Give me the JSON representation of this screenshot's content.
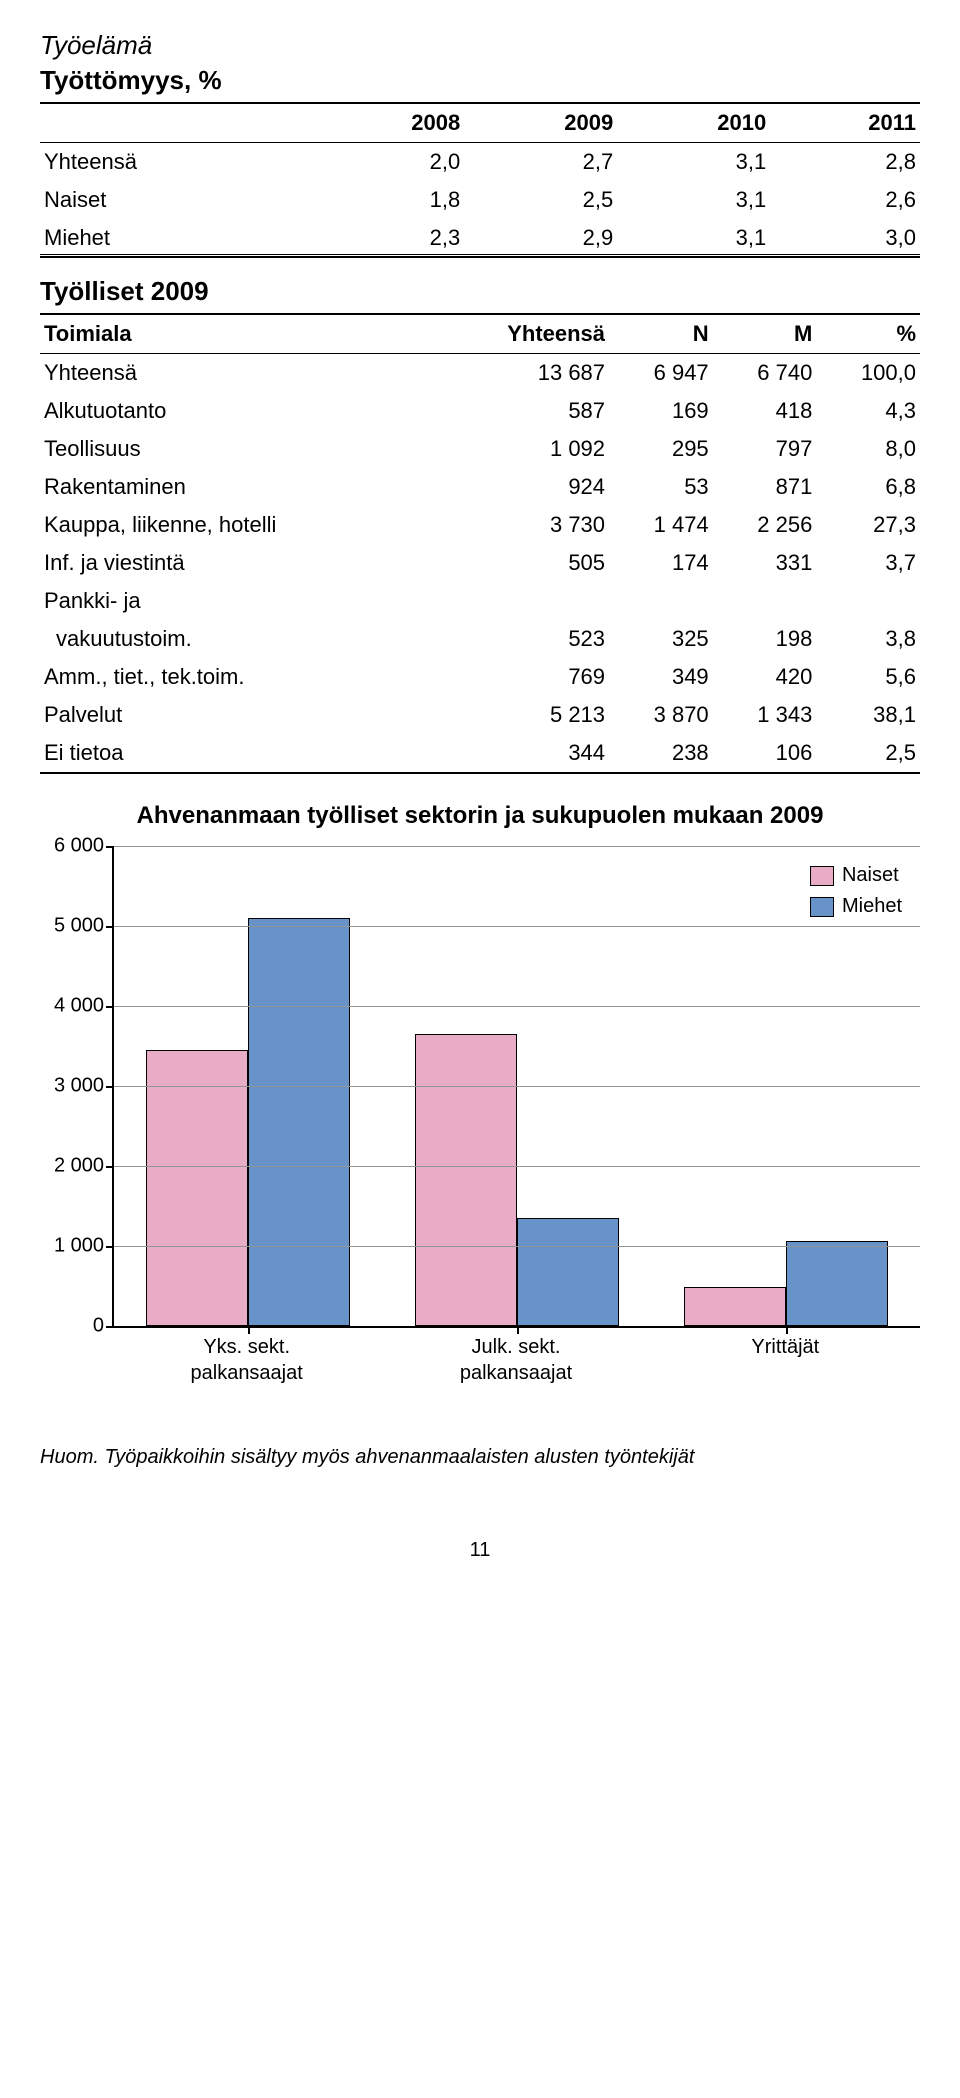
{
  "section_title": "Työelämä",
  "table1": {
    "title": "Työttömyys, %",
    "columns": [
      "",
      "2008",
      "2009",
      "2010",
      "2011"
    ],
    "rows": [
      [
        "Yhteensä",
        "2,0",
        "2,7",
        "3,1",
        "2,8"
      ],
      [
        "Naiset",
        "1,8",
        "2,5",
        "3,1",
        "2,6"
      ],
      [
        "Miehet",
        "2,3",
        "2,9",
        "3,1",
        "3,0"
      ]
    ]
  },
  "table2": {
    "title": "Työlliset 2009",
    "columns": [
      "Toimiala",
      "Yhteensä",
      "N",
      "M",
      "%"
    ],
    "rows": [
      {
        "cells": [
          "Yhteensä",
          "13 687",
          "6 947",
          "6 740",
          "100,0"
        ],
        "indent": false
      },
      {
        "cells": [
          "Alkutuotanto",
          "587",
          "169",
          "418",
          "4,3"
        ],
        "indent": false
      },
      {
        "cells": [
          "Teollisuus",
          "1 092",
          "295",
          "797",
          "8,0"
        ],
        "indent": false
      },
      {
        "cells": [
          "Rakentaminen",
          "924",
          "53",
          "871",
          "6,8"
        ],
        "indent": false
      },
      {
        "cells": [
          "Kauppa, liikenne, hotelli",
          "3 730",
          "1 474",
          "2 256",
          "27,3"
        ],
        "indent": false
      },
      {
        "cells": [
          "Inf. ja viestintä",
          "505",
          "174",
          "331",
          "3,7"
        ],
        "indent": false
      },
      {
        "cells": [
          "Pankki- ja",
          "",
          "",
          "",
          ""
        ],
        "indent": false
      },
      {
        "cells": [
          "vakuutustoim.",
          "523",
          "325",
          "198",
          "3,8"
        ],
        "indent": true
      },
      {
        "cells": [
          "Amm., tiet., tek.toim.",
          "769",
          "349",
          "420",
          "5,6"
        ],
        "indent": false
      },
      {
        "cells": [
          "Palvelut",
          "5 213",
          "3 870",
          "1 343",
          "38,1"
        ],
        "indent": false
      },
      {
        "cells": [
          "Ei tietoa",
          "344",
          "238",
          "106",
          "2,5"
        ],
        "indent": false
      }
    ]
  },
  "chart": {
    "title": "Ahvenanmaan työlliset sektorin ja sukupuolen mukaan 2009",
    "type": "bar",
    "y_max": 6000,
    "y_ticks": [
      0,
      1000,
      2000,
      3000,
      4000,
      5000,
      6000
    ],
    "y_tick_labels": [
      "0",
      "1 000",
      "2 000",
      "3 000",
      "4 000",
      "5 000",
      "6 000"
    ],
    "categories": [
      "Yks. sekt.\npalkansaajat",
      "Julk. sekt.\npalkansaajat",
      "Yrittäjät"
    ],
    "series": [
      {
        "name": "Naiset",
        "color": "#e9acc7",
        "values": [
          3450,
          3650,
          490
        ]
      },
      {
        "name": "Miehet",
        "color": "#6793c8",
        "values": [
          5100,
          1350,
          1060
        ]
      }
    ],
    "grid_color": "#949494",
    "background": "#ffffff"
  },
  "footnote": "Huom. Työpaikkoihin sisältyy myös ahvenanmaalaisten alusten työntekijät",
  "page_number": "11"
}
